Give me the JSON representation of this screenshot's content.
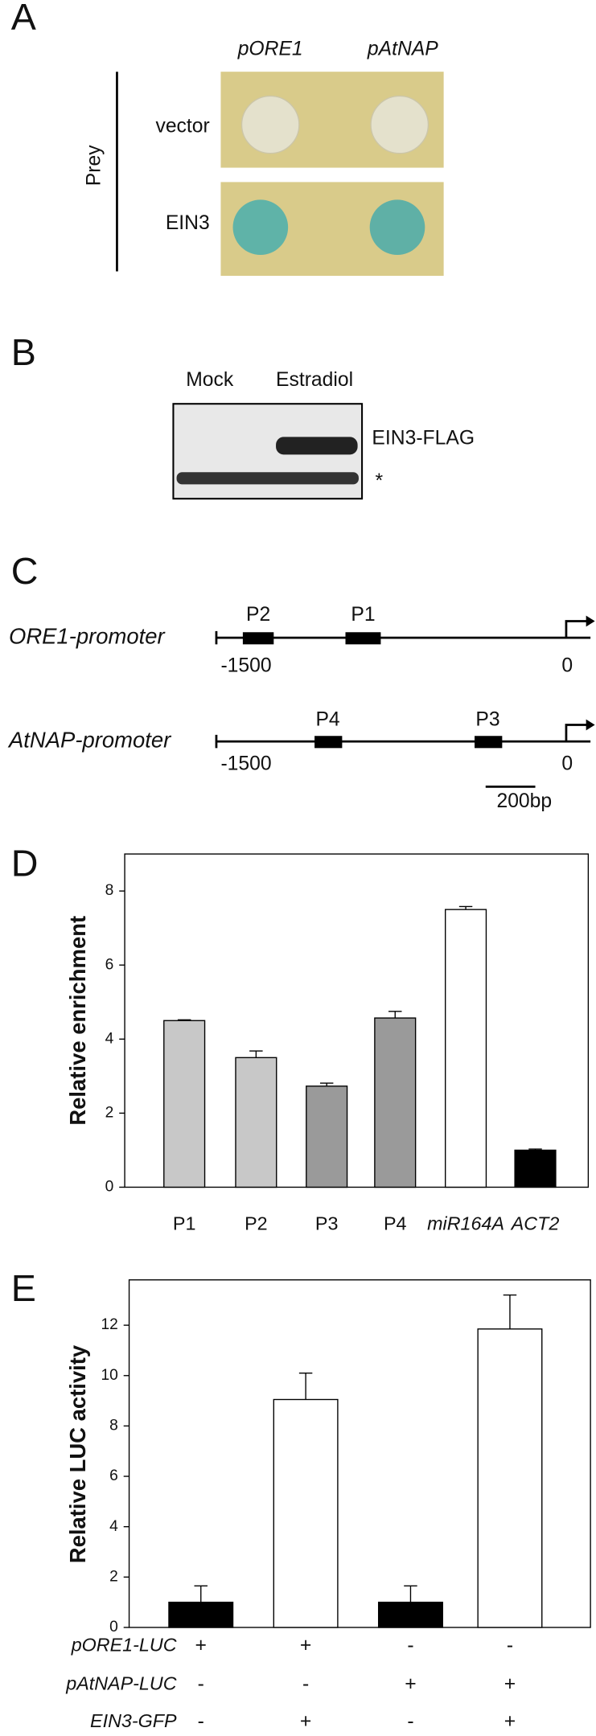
{
  "panel_a": {
    "label": "A",
    "columns": [
      "pORE1",
      "pAtNAP"
    ],
    "axis_label": "Prey",
    "rows": [
      "vector",
      "EIN3"
    ]
  },
  "panel_b": {
    "label": "B",
    "lanes": [
      "Mock",
      "Estradiol"
    ],
    "bands": [
      "EIN3-FLAG",
      "*"
    ]
  },
  "panel_c": {
    "label": "C",
    "promoters": [
      {
        "name": "ORE1-promoter",
        "start": "-1500",
        "end": "0",
        "regions": [
          "P2",
          "P1"
        ]
      },
      {
        "name": "AtNAP-promoter",
        "start": "-1500",
        "end": "0",
        "regions": [
          "P4",
          "P3"
        ]
      }
    ],
    "scale_bar": "200bp"
  },
  "chart_data": [
    {
      "type": "bar",
      "label": "D",
      "ylabel": "Relative enrichment",
      "categories": [
        "P1",
        "P2",
        "P3",
        "P4",
        "miR164A",
        "ACT2"
      ],
      "values": [
        4.5,
        3.5,
        2.73,
        4.57,
        7.5,
        1.0
      ],
      "errors": [
        0.02,
        0.18,
        0.08,
        0.18,
        0.08,
        0.03
      ],
      "colors": [
        "#c8c8c8",
        "#c8c8c8",
        "#9a9a9a",
        "#9a9a9a",
        "#ffffff",
        "#000000"
      ],
      "ylim": [
        0,
        9
      ],
      "yticks": [
        0,
        2,
        4,
        6,
        8
      ]
    },
    {
      "type": "bar",
      "label": "E",
      "ylabel": "Relative LUC activity",
      "row_labels": [
        "pORE1-LUC",
        "pAtNAP-LUC",
        "EIN3-GFP"
      ],
      "signs": [
        [
          "+",
          "+",
          "-",
          "-"
        ],
        [
          "-",
          "-",
          "+",
          "+"
        ],
        [
          "-",
          "+",
          "-",
          "+"
        ]
      ],
      "values": [
        1.0,
        9.05,
        1.0,
        11.85
      ],
      "errors": [
        0.65,
        1.05,
        0.65,
        1.35
      ],
      "colors": [
        "#000000",
        "#ffffff",
        "#000000",
        "#ffffff"
      ],
      "ylim": [
        0,
        13.8
      ],
      "yticks": [
        0,
        2,
        4,
        6,
        8,
        10,
        12
      ]
    }
  ]
}
